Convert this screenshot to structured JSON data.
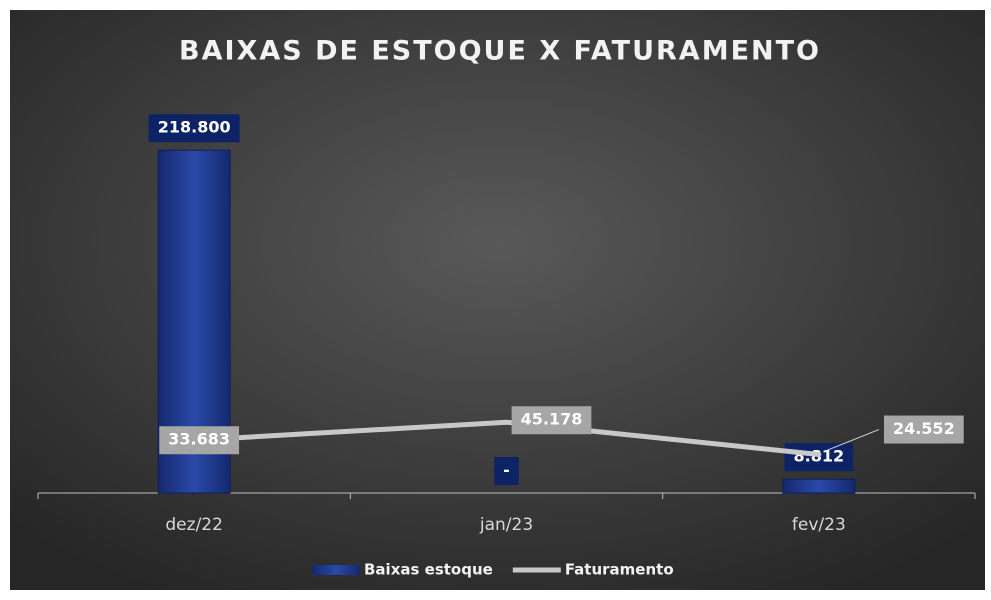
{
  "chart_data": {
    "type": "combo",
    "title": "BAIXAS DE ESTOQUE X FATURAMENTO",
    "categories": [
      "dez/22",
      "jan/23",
      "fev/23"
    ],
    "series": [
      {
        "name": "Baixas estoque",
        "type": "bar",
        "color": "#1f3a93",
        "values": [
          218800,
          0,
          8812
        ],
        "value_labels": [
          "218.800",
          "-",
          "8.812"
        ]
      },
      {
        "name": "Faturamento",
        "type": "line",
        "color": "#c8c8c8",
        "values": [
          33683,
          45178,
          24552
        ],
        "value_labels": [
          "33.683",
          "45.178",
          "24.552"
        ]
      }
    ],
    "ylim": [
      0,
      240000
    ],
    "legend": "bottom"
  }
}
